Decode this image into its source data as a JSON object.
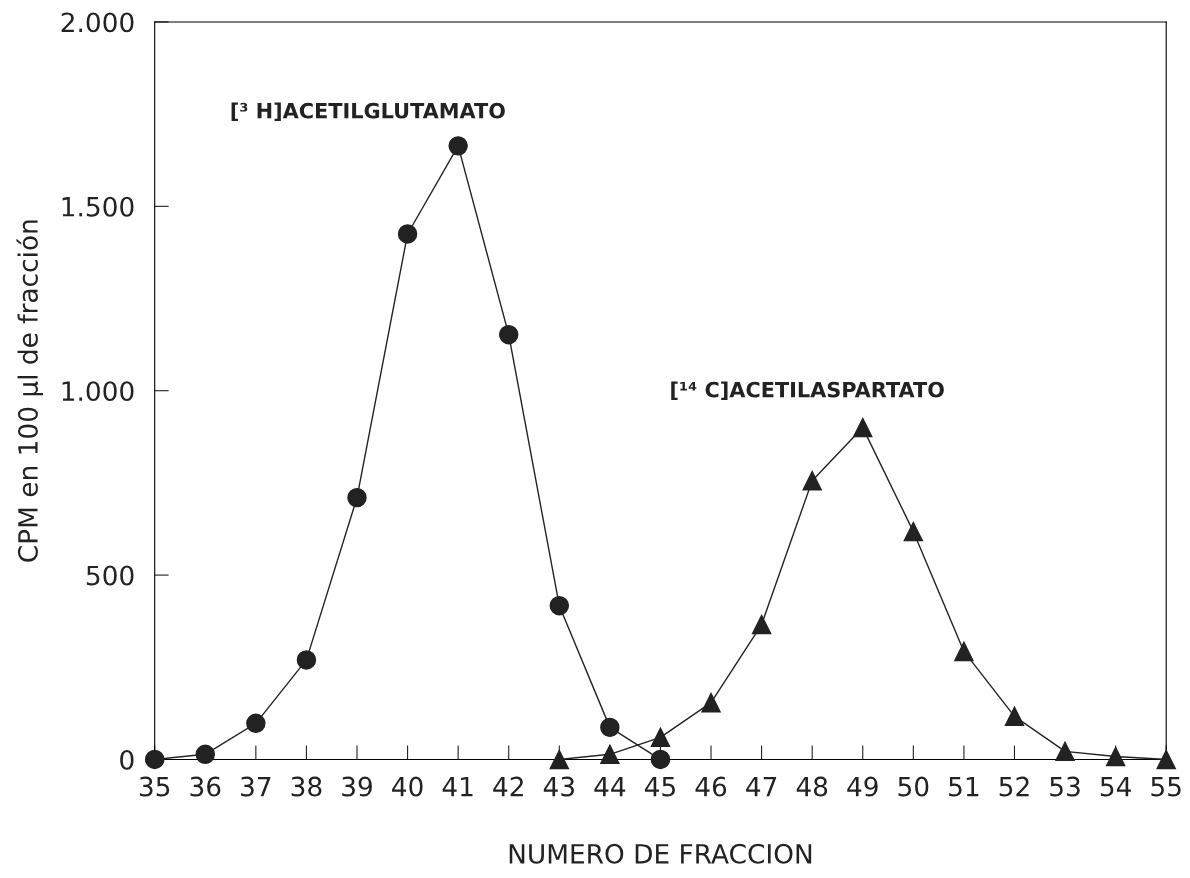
{
  "chart_data": {
    "type": "line",
    "xlabel": "NUMERO DE FRACCION",
    "ylabel": "CPM en 100 μl de fracción",
    "xlim": [
      35,
      55
    ],
    "xticks": [
      35,
      36,
      37,
      38,
      39,
      40,
      41,
      42,
      43,
      44,
      45,
      46,
      47,
      48,
      49,
      50,
      51,
      52,
      53,
      54,
      55
    ],
    "ylim": [
      0,
      2000
    ],
    "yticks": [
      {
        "value": 0,
        "label": "0"
      },
      {
        "value": 500,
        "label": "500"
      },
      {
        "value": 1000,
        "label": "1.000"
      },
      {
        "value": 1500,
        "label": "1.500"
      },
      {
        "value": 2000,
        "label": "2.000"
      }
    ],
    "grid": false,
    "legend": false,
    "line_style": "solid",
    "series": [
      {
        "name": "[³ H]ACETILGLUTAMATO",
        "color": "#222222",
        "marker": "circle",
        "x": [
          35,
          36,
          37,
          38,
          39,
          40,
          41,
          42,
          43,
          44,
          45
        ],
        "values": [
          0,
          14,
          98,
          270,
          710,
          1425,
          1664,
          1152,
          417,
          87,
          0
        ]
      },
      {
        "name": "[¹⁴ C]ACETILASPARTATO",
        "color": "#222222",
        "marker": "triangle",
        "x": [
          43,
          44,
          45,
          46,
          47,
          48,
          49,
          50,
          51,
          52,
          53,
          54,
          55
        ],
        "values": [
          0,
          14,
          60,
          154,
          366,
          756,
          900,
          618,
          293,
          117,
          22,
          8,
          0
        ]
      }
    ]
  }
}
